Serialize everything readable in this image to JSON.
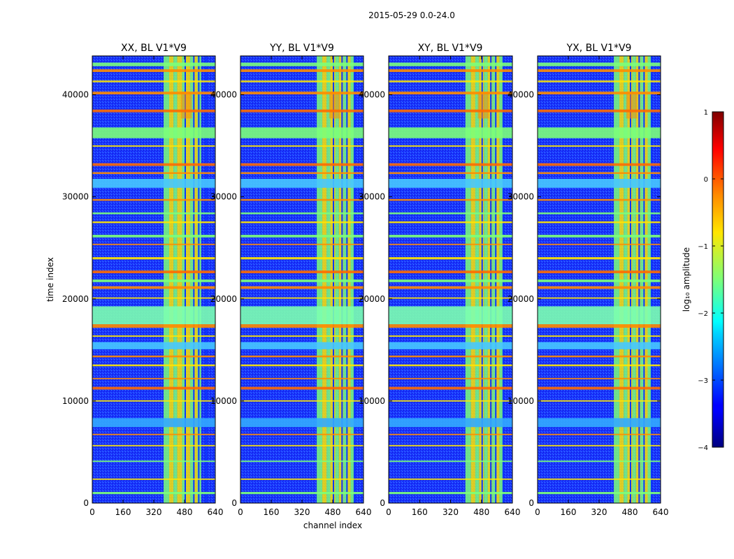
{
  "figure": {
    "suptitle": "2015-05-29 0.0-24.0"
  },
  "chart_data": [
    {
      "type": "heatmap",
      "title": "XX, BL V1*V9",
      "xlabel": "",
      "ylabel": "time index",
      "xlim": [
        0,
        640
      ],
      "ylim": [
        0,
        43800
      ],
      "xticks": [
        0,
        160,
        320,
        480,
        640
      ],
      "yticks": [
        0,
        10000,
        20000,
        30000,
        40000
      ]
    },
    {
      "type": "heatmap",
      "title": "YY, BL V1*V9",
      "xlabel": "channel index",
      "ylabel": "",
      "xlim": [
        0,
        640
      ],
      "ylim": [
        0,
        43800
      ],
      "xticks": [
        0,
        160,
        320,
        480,
        640
      ],
      "yticks": [
        0,
        10000,
        20000,
        30000,
        40000
      ]
    },
    {
      "type": "heatmap",
      "title": "XY, BL V1*V9",
      "xlabel": "",
      "ylabel": "",
      "xlim": [
        0,
        640
      ],
      "ylim": [
        0,
        43800
      ],
      "xticks": [
        0,
        160,
        320,
        480,
        640
      ],
      "yticks": [
        0,
        10000,
        20000,
        30000,
        40000
      ]
    },
    {
      "type": "heatmap",
      "title": "YX, BL V1*V9",
      "xlabel": "",
      "ylabel": "",
      "xlim": [
        0,
        640
      ],
      "ylim": [
        0,
        43800
      ],
      "xticks": [
        0,
        160,
        320,
        480,
        640
      ],
      "yticks": [
        0,
        10000,
        20000,
        30000,
        40000
      ]
    }
  ],
  "colorbar": {
    "label": "log₁₀ amplitude",
    "range": [
      -4,
      1
    ],
    "ticks": [
      "1",
      "0",
      "−1",
      "−2",
      "−3",
      "−4"
    ],
    "colormap": "jet"
  }
}
